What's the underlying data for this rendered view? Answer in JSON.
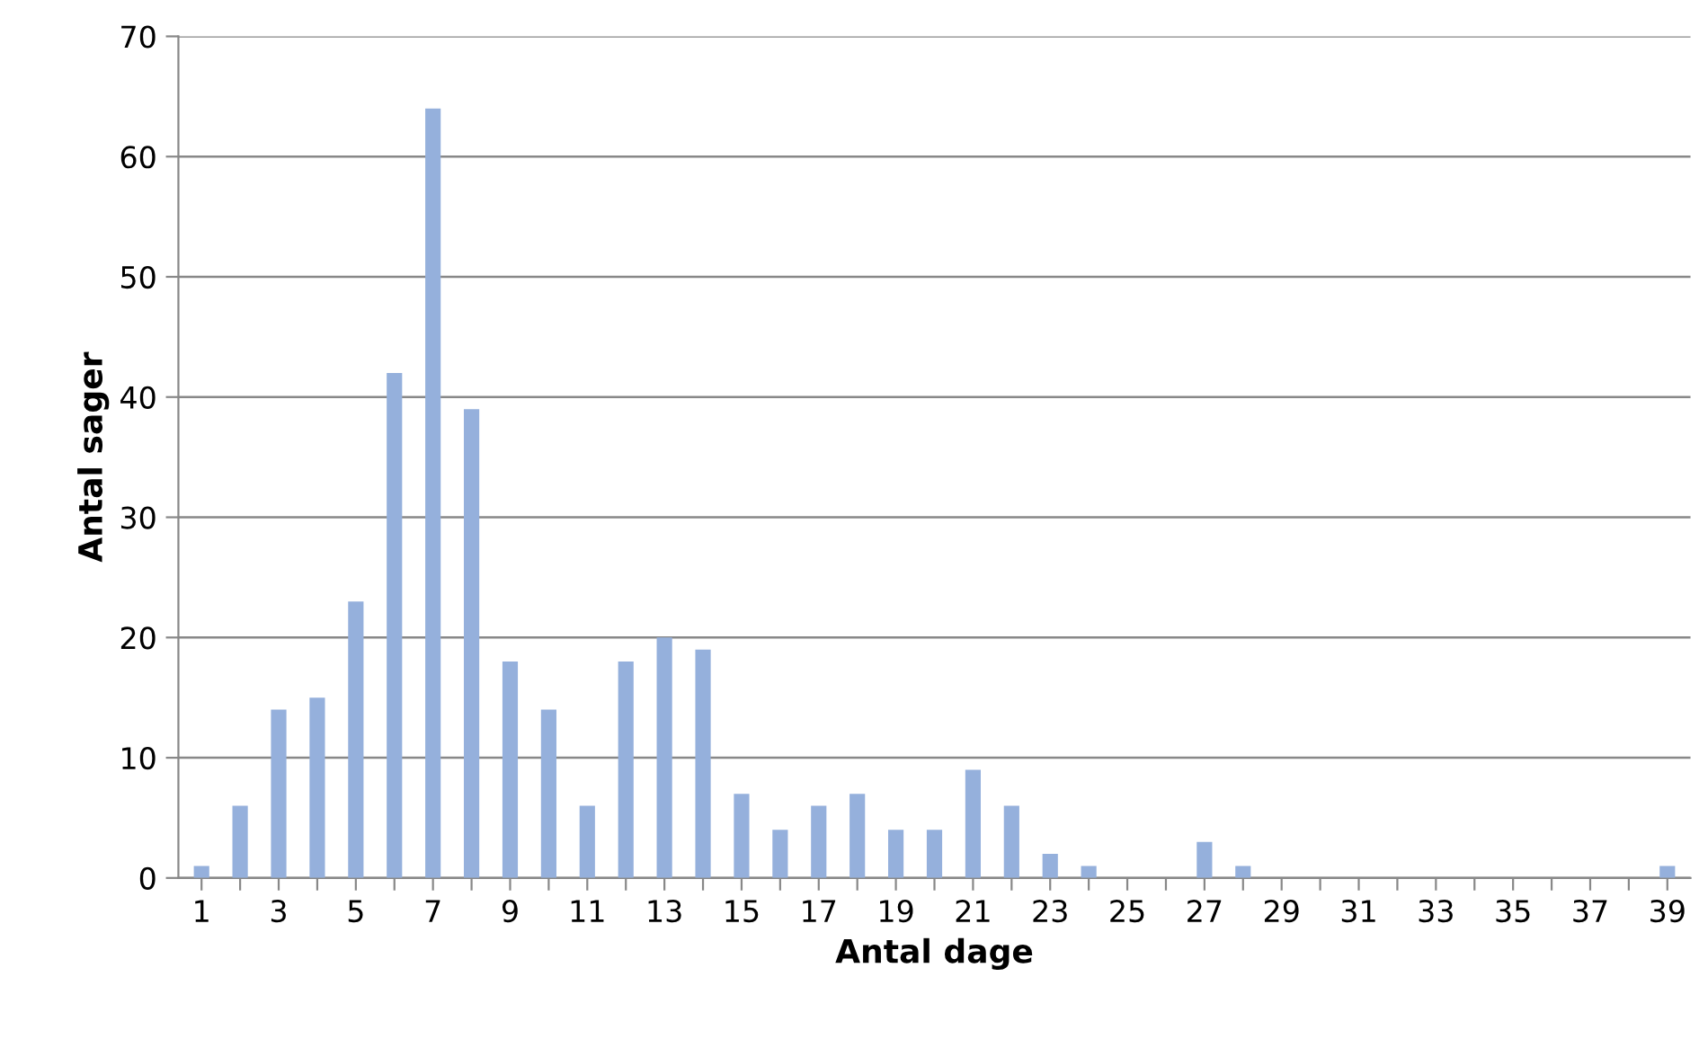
{
  "chart_data": {
    "type": "bar",
    "xlabel": "Antal dage",
    "ylabel": "Antal sager",
    "categories": [
      "1",
      null,
      "3",
      null,
      "5",
      null,
      "7",
      null,
      "9",
      null,
      "11",
      null,
      "13",
      null,
      "15",
      null,
      "17",
      null,
      "19",
      null,
      "21",
      null,
      "23",
      null,
      "25",
      null,
      "27",
      null,
      "29",
      null,
      "31",
      null,
      "33",
      null,
      "35",
      null,
      "37",
      null,
      "39"
    ],
    "values": [
      1,
      6,
      14,
      15,
      23,
      42,
      64,
      39,
      18,
      14,
      6,
      18,
      20,
      19,
      7,
      4,
      6,
      7,
      4,
      4,
      9,
      6,
      2,
      1,
      0,
      0,
      3,
      1,
      0,
      0,
      0,
      0,
      0,
      0,
      0,
      0,
      0,
      0,
      1
    ],
    "color": "#95b0dc",
    "ylim": [
      0,
      70
    ],
    "yticks": [
      0,
      10,
      20,
      30,
      40,
      50,
      60,
      70
    ],
    "grid": "y",
    "legend": false
  }
}
